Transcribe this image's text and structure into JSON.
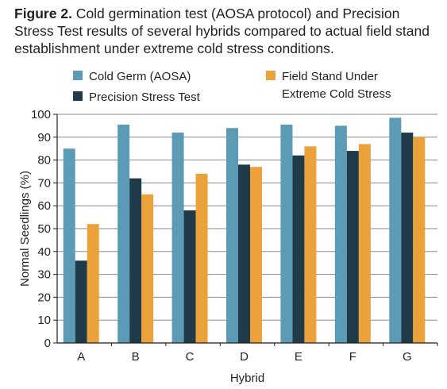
{
  "caption": {
    "label": "Figure 2.",
    "text": " Cold germination test (AOSA protocol) and Precision Stress Test results of several hybrids compared to actual field stand establishment under extreme cold stress conditions."
  },
  "chart_data": {
    "type": "bar",
    "categories": [
      "A",
      "B",
      "C",
      "D",
      "E",
      "F",
      "G"
    ],
    "series": [
      {
        "name": "Cold Germ (AOSA)",
        "color": "#5b9bb5",
        "values": [
          85,
          95.5,
          92,
          94,
          95.5,
          95,
          98.5
        ]
      },
      {
        "name": "Precision Stress Test",
        "color": "#1f3a48",
        "values": [
          36,
          72,
          58,
          78,
          82,
          84,
          92
        ]
      },
      {
        "name": "Field Stand Under Extreme Cold Stress",
        "name_lines": [
          "Field Stand Under",
          "Extreme Cold Stress"
        ],
        "color": "#eba23b",
        "values": [
          52,
          65,
          74,
          77,
          86,
          87,
          90
        ]
      }
    ],
    "xlabel": "Hybrid",
    "ylabel": "Normal Seedlings (%)",
    "ylim": [
      0,
      100
    ],
    "yticks": [
      0,
      10,
      20,
      30,
      40,
      50,
      60,
      70,
      80,
      90,
      100
    ],
    "grid": true,
    "legend": "top"
  }
}
